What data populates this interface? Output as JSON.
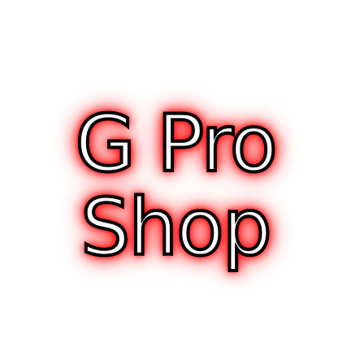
{
  "logo": {
    "line1": "G Pro",
    "line2": "Shop"
  },
  "colors": {
    "background": "#ffffff",
    "glow": "#ff0000",
    "outline": "#000000",
    "fill": "#ffffff"
  }
}
